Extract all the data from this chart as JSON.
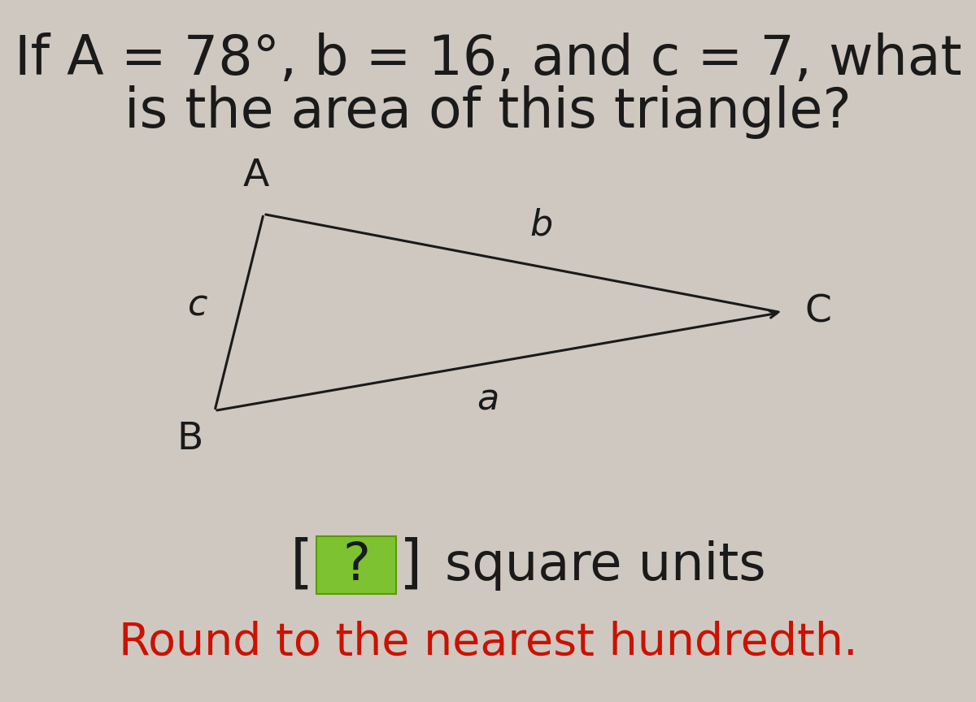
{
  "background_color": "#cfc8c0",
  "title_line1": "If A = 78°, b = 16, and c = 7, what",
  "title_line2": "is the area of this triangle?",
  "title_fontsize": 48,
  "title_color": "#1a1a1a",
  "triangle": {
    "A": [
      0.27,
      0.695
    ],
    "B": [
      0.22,
      0.415
    ],
    "C": [
      0.8,
      0.555
    ],
    "label_A": "A",
    "label_B": "B",
    "label_C": "C",
    "label_a": "a",
    "label_b": "b",
    "label_c": "c",
    "line_color": "#1a1a1a",
    "line_width": 2.2
  },
  "answer_box": {
    "text": "?",
    "box_color": "#7dc230",
    "box_edge_color": "#5a9a00",
    "bracket_color": "#1a1a1a",
    "text_color": "#1a1a1a",
    "suffix": "square units",
    "fontsize": 46
  },
  "footer_text": "Round to the nearest hundredth.",
  "footer_color": "#cc1100",
  "footer_fontsize": 40
}
